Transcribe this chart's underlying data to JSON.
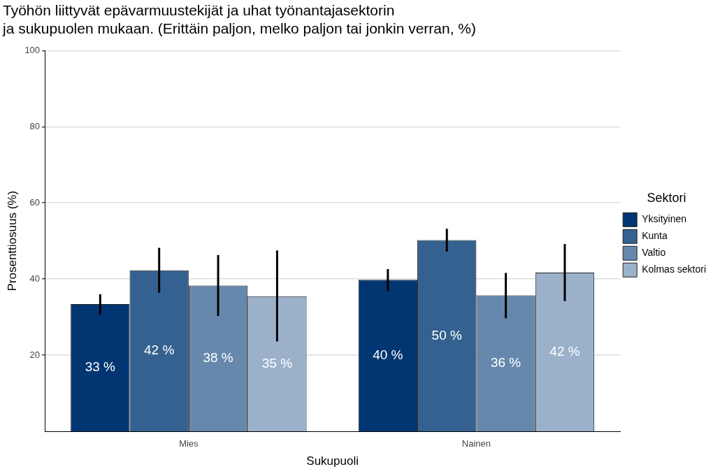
{
  "chart_data": {
    "type": "bar",
    "title": "Työhön liittyvät epävarmuustekijät ja uhat työnantajasektorin\nja sukupuolen mukaan. (Erittäin paljon, melko paljon tai jonkin verran, %)",
    "xlabel": "Sukupuoli",
    "ylabel": "Prosenttiosuus (%)",
    "legend_title": "Sektori",
    "categories": [
      "Mies",
      "Nainen"
    ],
    "series": [
      {
        "name": "Yksityinen",
        "color": "#023672",
        "values": [
          33.4,
          39.8
        ],
        "errors": [
          [
            30.7,
            36.0
          ],
          [
            36.8,
            42.6
          ]
        ],
        "value_labels": [
          "33 %",
          "40 %"
        ]
      },
      {
        "name": "Kunta",
        "color": "#34618f",
        "values": [
          42.3,
          50.2
        ],
        "errors": [
          [
            36.4,
            48.2
          ],
          [
            47.2,
            53.2
          ]
        ],
        "value_labels": [
          "42 %",
          "50 %"
        ]
      },
      {
        "name": "Valtio",
        "color": "#6688ad",
        "values": [
          38.3,
          35.7
        ],
        "errors": [
          [
            30.3,
            46.3
          ],
          [
            29.7,
            41.6
          ]
        ],
        "value_labels": [
          "38 %",
          "36 %"
        ]
      },
      {
        "name": "Kolmas sektori",
        "color": "#9bb1ca",
        "values": [
          35.5,
          41.7
        ],
        "errors": [
          [
            23.6,
            47.5
          ],
          [
            34.2,
            49.2
          ]
        ],
        "value_labels": [
          "35 %",
          "42 %"
        ]
      }
    ],
    "ylim": [
      0,
      100
    ],
    "yticks": [
      20,
      40,
      60,
      80,
      100
    ],
    "grid": "y",
    "legend": "right"
  }
}
